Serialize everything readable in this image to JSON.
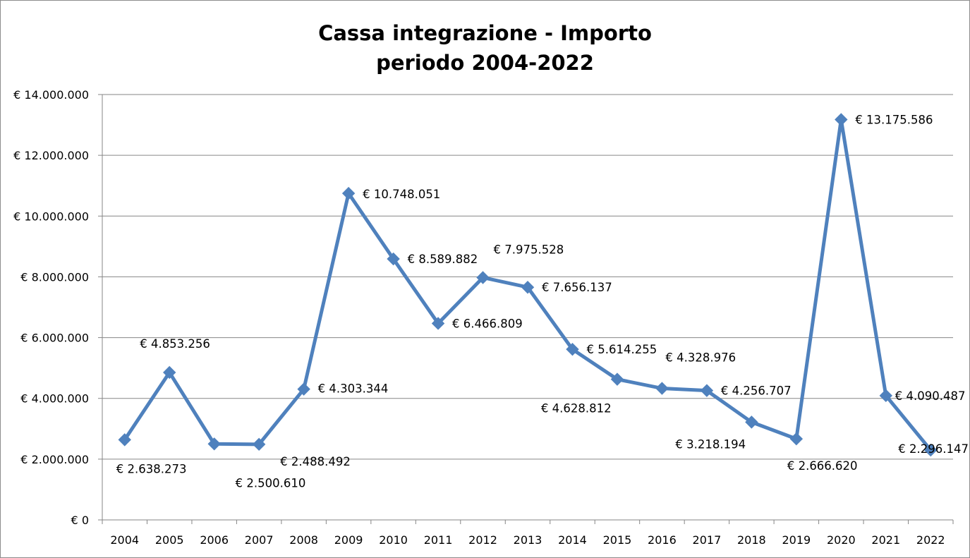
{
  "chart_data": {
    "type": "line",
    "title_lines": [
      "Cassa integrazione - Importo",
      "periodo 2004-2022"
    ],
    "xlabel": "",
    "ylabel": "",
    "ylim": [
      0,
      14000000
    ],
    "y_ticks": [
      0,
      2000000,
      4000000,
      6000000,
      8000000,
      10000000,
      12000000,
      14000000
    ],
    "y_tick_labels": [
      "€ 0",
      "€ 2.000.000",
      "€ 4.000.000",
      "€ 6.000.000",
      "€ 8.000.000",
      "€ 10.000.000",
      "€ 12.000.000",
      "€ 14.000.000"
    ],
    "categories": [
      "2004",
      "2005",
      "2006",
      "2007",
      "2008",
      "2009",
      "2010",
      "2011",
      "2012",
      "2013",
      "2014",
      "2015",
      "2016",
      "2017",
      "2018",
      "2019",
      "2020",
      "2021",
      "2022"
    ],
    "series": [
      {
        "color": "#4f81bd",
        "marker": "diamond",
        "values": [
          2638273,
          4853256,
          2500610,
          2488492,
          4303344,
          10748051,
          8589882,
          6466809,
          7975528,
          7656137,
          5614255,
          4628812,
          4328976,
          4256707,
          3218194,
          2666620,
          13175586,
          4090487,
          2296147
        ],
        "data_labels": [
          "€ 2.638.273",
          "€ 4.853.256",
          "€ 2.500.610",
          "€ 2.488.492",
          "€ 4.303.344",
          "€ 10.748.051",
          "€ 8.589.882",
          "€ 6.466.809",
          "€ 7.975.528",
          "€ 7.656.137",
          "€ 5.614.255",
          "€ 4.628.812",
          "€ 4.328.976",
          "€ 4.256.707",
          "€ 3.218.194",
          "€ 2.666.620",
          "€ 13.175.586",
          "€ 4.090.487",
          "€ 2.296.147"
        ]
      }
    ],
    "grid": true,
    "legend": "none"
  }
}
